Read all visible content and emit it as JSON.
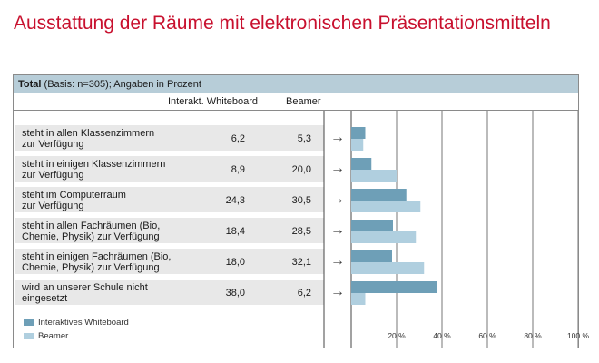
{
  "title": "Ausstattung der Räume mit elektronischen Präsentationsmitteln",
  "header": {
    "total_label": "Total",
    "basis_text": "(Basis: n=305); Angaben in Prozent"
  },
  "columns": {
    "whiteboard": "Interakt. Whiteboard",
    "beamer": "Beamer"
  },
  "arrow_glyph": "→",
  "colors": {
    "whiteboard": "#6e9fb7",
    "beamer": "#b0cfdf",
    "row_band": "#e8e8e8",
    "header_band": "#b7cdd8",
    "title": "#c8102e"
  },
  "chart_data": {
    "type": "bar",
    "orientation": "horizontal",
    "categories": [
      [
        "steht in allen Klassenzimmern",
        "zur Verfügung"
      ],
      [
        "steht in einigen Klassenzimmern",
        "zur Verfügung"
      ],
      [
        "steht im Computerraum",
        "zur Verfügung"
      ],
      [
        "steht in allen Fachräumen (Bio,",
        "Chemie, Physik) zur Verfügung"
      ],
      [
        "steht in einigen Fachräumen (Bio,",
        "Chemie, Physik) zur Verfügung"
      ],
      [
        "wird an unserer Schule nicht",
        "eingesetzt"
      ]
    ],
    "series": [
      {
        "name": "Interaktives Whiteboard",
        "values": [
          6.2,
          8.9,
          24.3,
          18.4,
          18.0,
          38.0
        ],
        "labels": [
          "6,2",
          "8,9",
          "24,3",
          "18,4",
          "18,0",
          "38,0"
        ]
      },
      {
        "name": "Beamer",
        "values": [
          5.3,
          20.0,
          30.5,
          28.5,
          32.1,
          6.2
        ],
        "labels": [
          "5,3",
          "20,0",
          "30,5",
          "28,5",
          "32,1",
          "6,2"
        ]
      }
    ],
    "xlim": [
      0,
      100
    ],
    "xticks": [
      20,
      40,
      60,
      80,
      100
    ],
    "xtick_labels": [
      "20 %",
      "40 %",
      "60 %",
      "80 %",
      "100 %"
    ],
    "grid": true,
    "legend_position": "bottom-left"
  }
}
